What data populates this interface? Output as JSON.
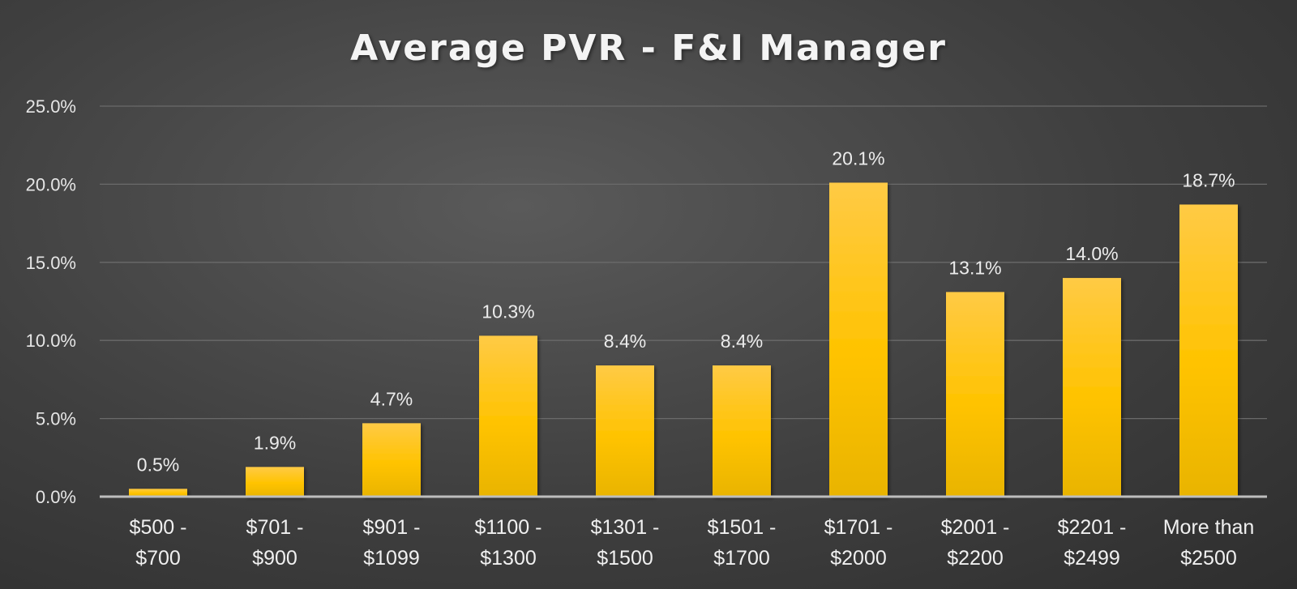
{
  "chart_data": {
    "type": "bar",
    "title": "Average PVR - F&I Manager",
    "categories": [
      [
        "$500 -",
        "$700"
      ],
      [
        "$701 -",
        "$900"
      ],
      [
        "$901 -",
        "$1099"
      ],
      [
        "$1100 -",
        "$1300"
      ],
      [
        "$1301 -",
        "$1500"
      ],
      [
        "$1501 -",
        "$1700"
      ],
      [
        "$1701 -",
        "$2000"
      ],
      [
        "$2001 -",
        "$2200"
      ],
      [
        "$2201 -",
        "$2499"
      ],
      [
        "More than",
        "$2500"
      ]
    ],
    "values": [
      0.5,
      1.9,
      4.7,
      10.3,
      8.4,
      8.4,
      20.1,
      13.1,
      14.0,
      18.7
    ],
    "data_labels": [
      "0.5%",
      "1.9%",
      "4.7%",
      "10.3%",
      "8.4%",
      "8.4%",
      "20.1%",
      "13.1%",
      "14.0%",
      "18.7%"
    ],
    "yticks": [
      "0.0%",
      "5.0%",
      "10.0%",
      "15.0%",
      "20.0%",
      "25.0%"
    ],
    "ylim": [
      0,
      25
    ],
    "xlabel": "",
    "ylabel": "",
    "grid": true,
    "bar_color": "#ffc000",
    "grid_color": "#6a6a6a",
    "axis_color": "#bdbdbd"
  }
}
